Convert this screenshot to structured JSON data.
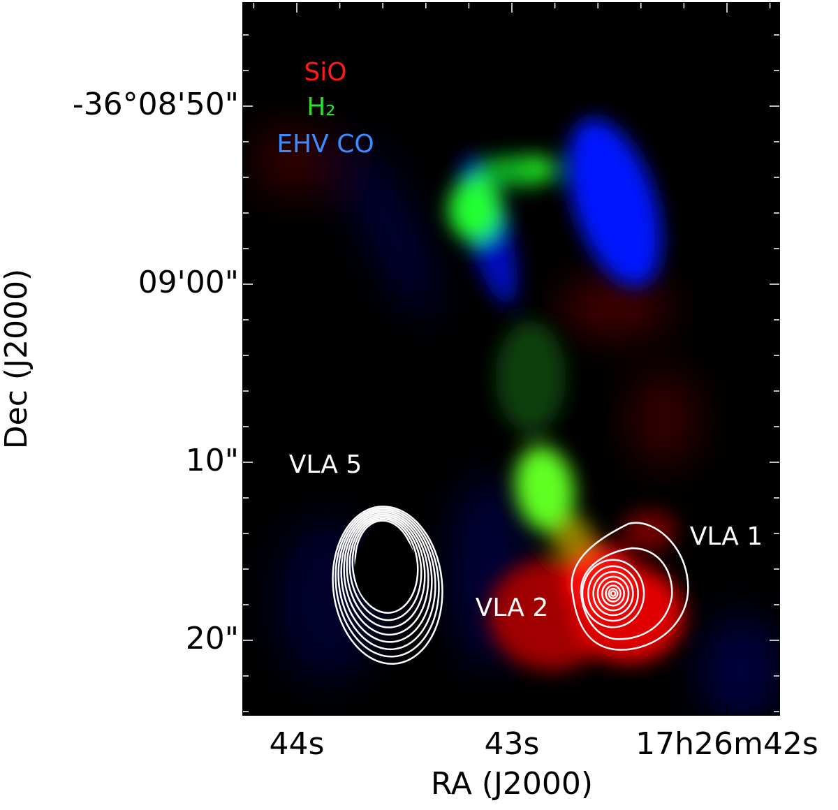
{
  "figure": {
    "x_label": "RA (J2000)",
    "y_label": "Dec (J2000)",
    "x_tick_labels": [
      "44s",
      "43s",
      "17h26m42s"
    ],
    "y_tick_labels": [
      "-36°08'50\"",
      "09'00\"",
      "10\"",
      "20\""
    ],
    "legend": [
      {
        "name": "SiO",
        "color": "#ff1a1a"
      },
      {
        "name": "H₂",
        "color": "#22e622"
      },
      {
        "name": "EHV CO",
        "color": "#3a8cff"
      }
    ],
    "annotations": [
      "VLA 5",
      "VLA 1",
      "VLA 2"
    ]
  }
}
